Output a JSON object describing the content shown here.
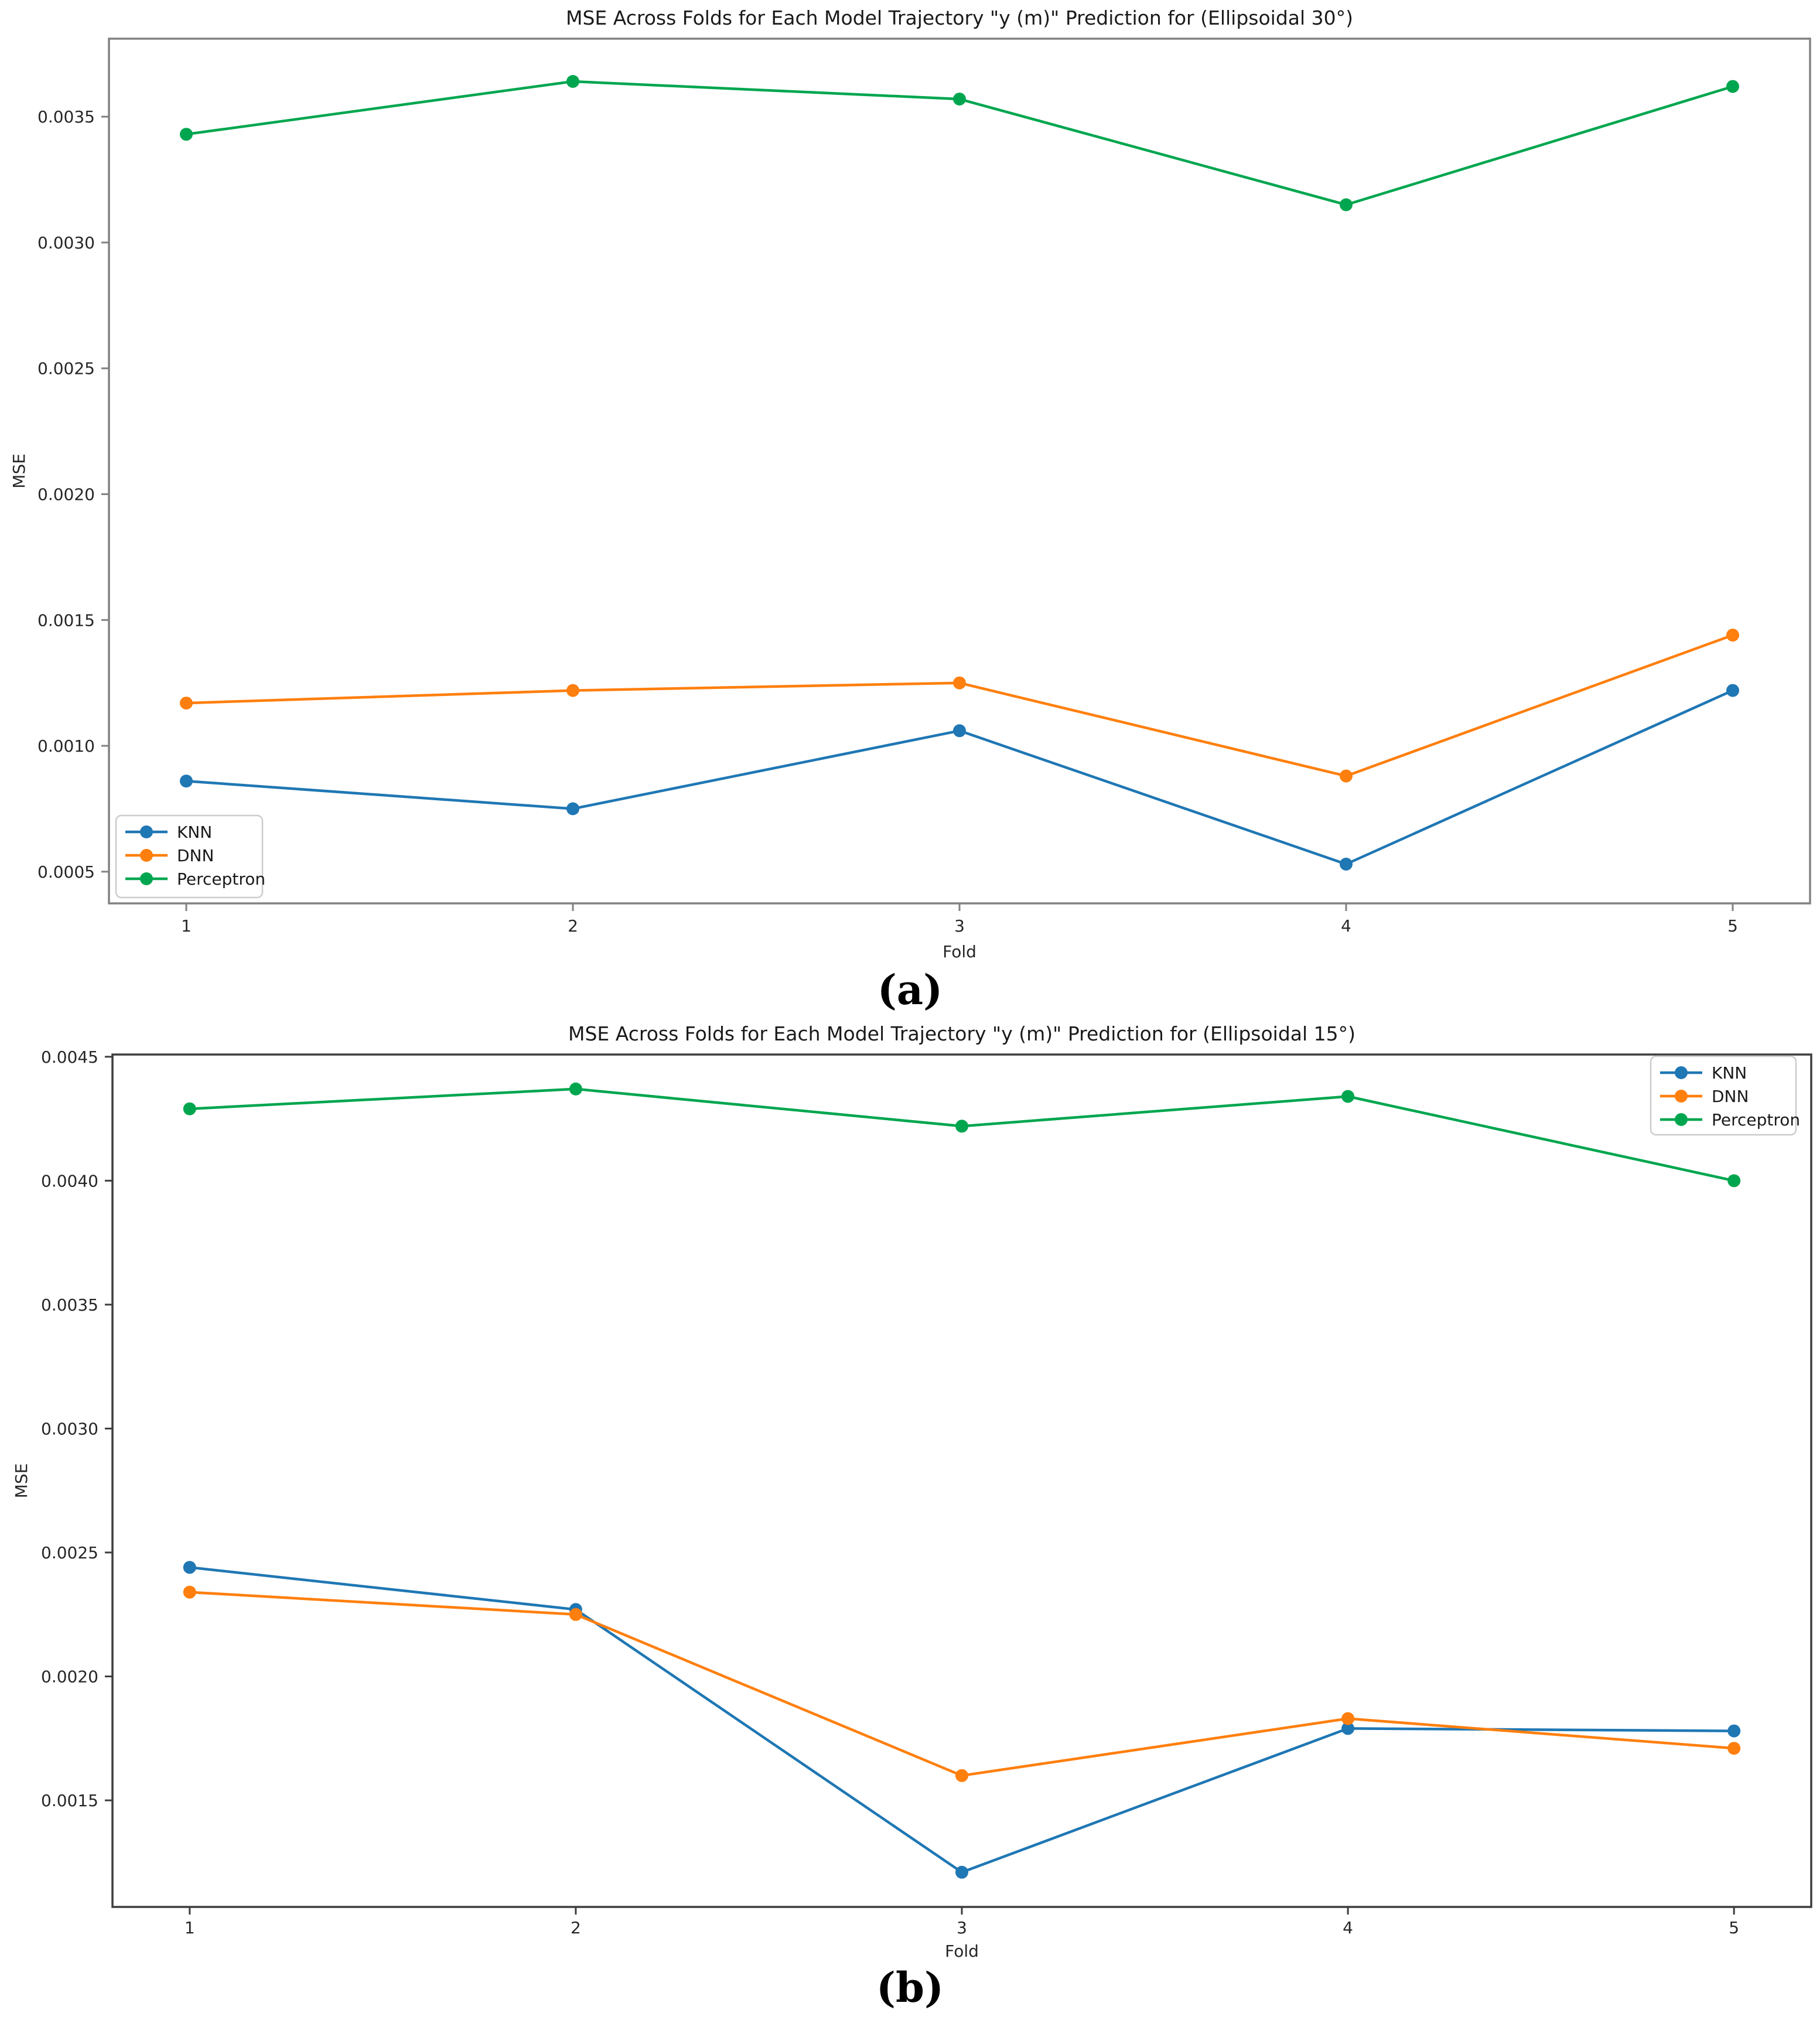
{
  "figure": {
    "caption_a": "(a)",
    "caption_b": "(b)",
    "colors": {
      "knn": "#1f77b4",
      "dnn": "#ff7f0e",
      "perceptron": "#00a64f"
    },
    "spine_color_a": "#828282",
    "spine_color_b": "#3d3d3d",
    "tick_text_color": "#262626",
    "legend_border_color": "#cccccc"
  },
  "chart_data": [
    {
      "id": "a",
      "type": "line",
      "title": "MSE Across Folds for Each Model Trajectory \"y (m)\" Prediction for (Ellipsoidal 30°)",
      "xlabel": "Fold",
      "ylabel": "MSE",
      "x": [
        1,
        2,
        3,
        4,
        5
      ],
      "xtick_labels": [
        "1",
        "2",
        "3",
        "4",
        "5"
      ],
      "ytick_values": [
        0.0005,
        0.001,
        0.0015,
        0.002,
        0.0025,
        0.003,
        0.0035
      ],
      "ytick_labels": [
        "0.0005",
        "0.0010",
        "0.0015",
        "0.0020",
        "0.0025",
        "0.0030",
        "0.0035"
      ],
      "xlim": [
        0.8,
        5.2
      ],
      "ylim": [
        0.000374,
        0.00381
      ],
      "grid": false,
      "legend_position": "bottom-left",
      "series": [
        {
          "name": "KNN",
          "color_key": "knn",
          "values": [
            0.00086,
            0.00075,
            0.00106,
            0.00053,
            0.00122
          ]
        },
        {
          "name": "DNN",
          "color_key": "dnn",
          "values": [
            0.00117,
            0.00122,
            0.00125,
            0.00088,
            0.00144
          ]
        },
        {
          "name": "Perceptron",
          "color_key": "perceptron",
          "values": [
            0.00343,
            0.00364,
            0.00357,
            0.00315,
            0.00362
          ]
        }
      ]
    },
    {
      "id": "b",
      "type": "line",
      "title": "MSE Across Folds for Each Model Trajectory \"y (m)\" Prediction for (Ellipsoidal 15°)",
      "xlabel": "Fold",
      "ylabel": "MSE",
      "x": [
        1,
        2,
        3,
        4,
        5
      ],
      "xtick_labels": [
        "1",
        "2",
        "3",
        "4",
        "5"
      ],
      "ytick_values": [
        0.0015,
        0.002,
        0.0025,
        0.003,
        0.0035,
        0.004,
        0.0045
      ],
      "ytick_labels": [
        "0.0015",
        "0.0020",
        "0.0025",
        "0.0030",
        "0.0035",
        "0.0040",
        "0.0045"
      ],
      "xlim": [
        0.8,
        5.2
      ],
      "ylim": [
        0.00107,
        0.004509
      ],
      "grid": false,
      "legend_position": "top-right",
      "series": [
        {
          "name": "KNN",
          "color_key": "knn",
          "values": [
            0.00244,
            0.00227,
            0.00121,
            0.00179,
            0.00178
          ]
        },
        {
          "name": "DNN",
          "color_key": "dnn",
          "values": [
            0.00234,
            0.00225,
            0.0016,
            0.00183,
            0.00171
          ]
        },
        {
          "name": "Perceptron",
          "color_key": "perceptron",
          "values": [
            0.00429,
            0.00437,
            0.00422,
            0.00434,
            0.004
          ]
        }
      ]
    }
  ]
}
